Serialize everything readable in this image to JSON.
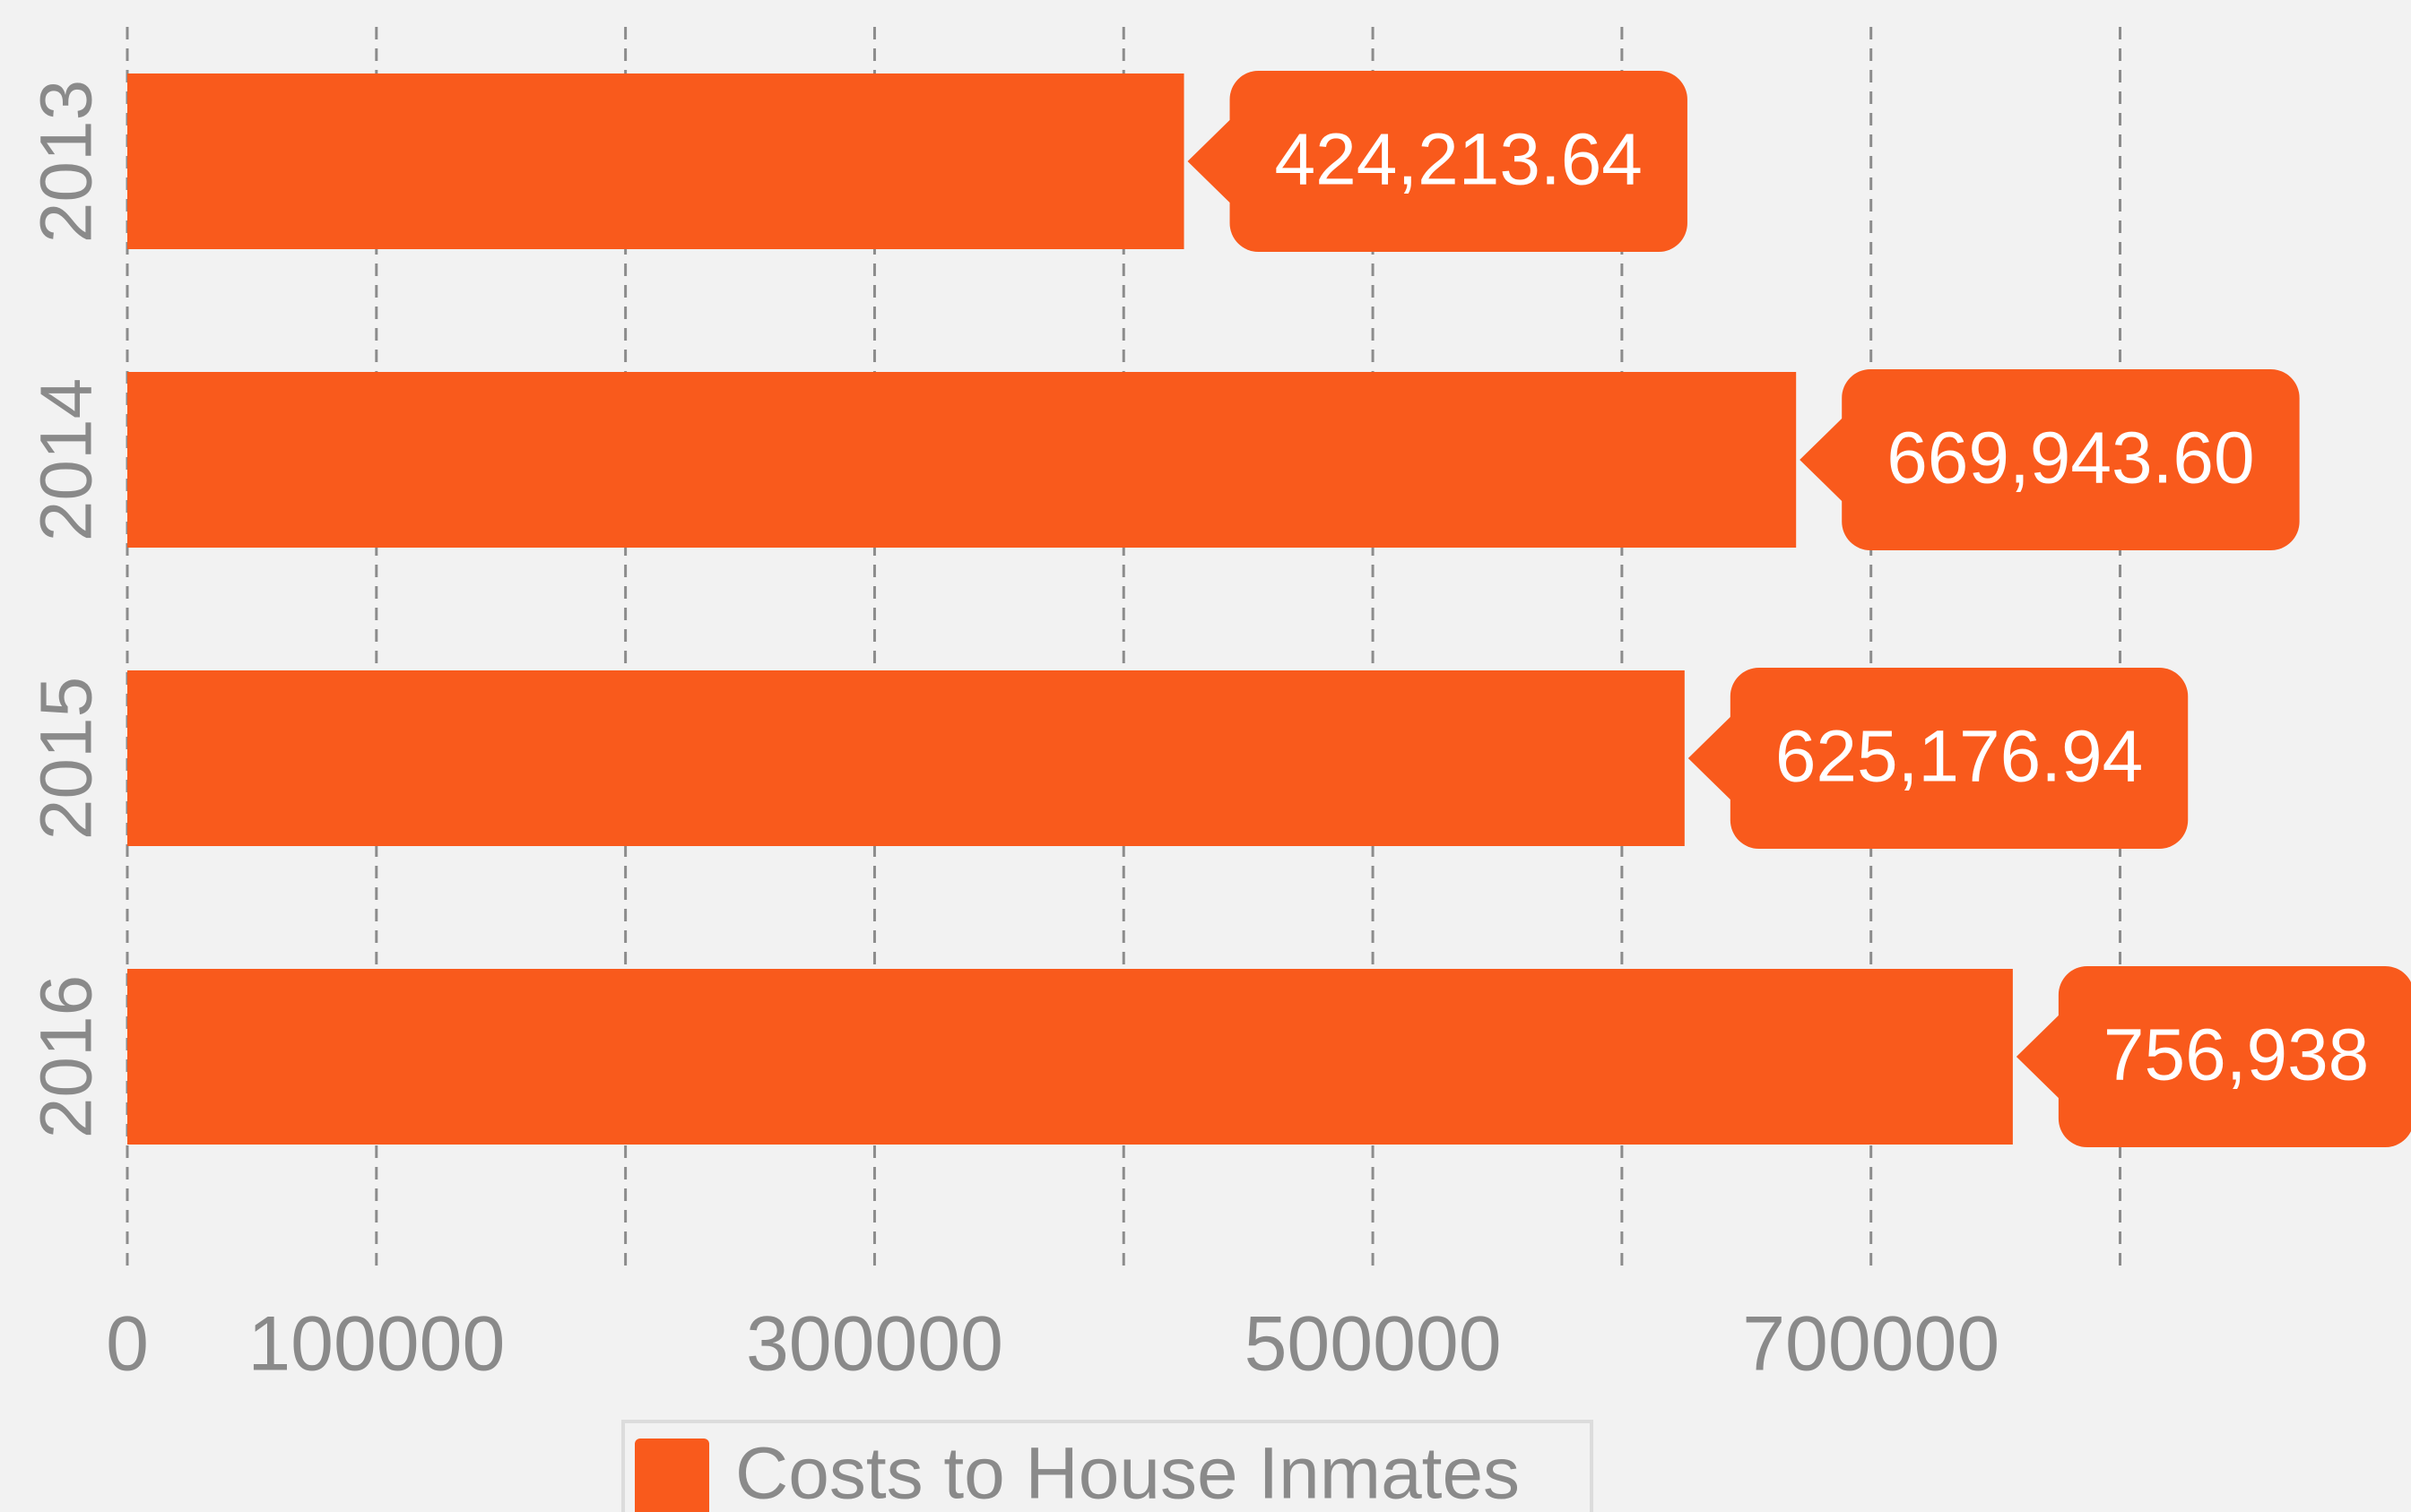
{
  "chart_data": {
    "type": "hbar",
    "categories": [
      "2013",
      "2014",
      "2015",
      "2016"
    ],
    "series": [
      {
        "name": "Costs to House Inmates",
        "color": "#f95a1c",
        "values": [
          424213.64,
          669943.6,
          625176.94,
          756938
        ],
        "value_labels": [
          "424,213.64",
          "669,943.60",
          "625,176.94",
          "756,938"
        ]
      }
    ],
    "xlim": [
      0,
      915000
    ],
    "xticks": [
      0,
      100000,
      300000,
      500000,
      700000
    ],
    "xgrid": [
      0,
      100000,
      200000,
      300000,
      400000,
      500000,
      600000,
      700000,
      800000
    ],
    "grid": true,
    "legend": "bottom"
  }
}
